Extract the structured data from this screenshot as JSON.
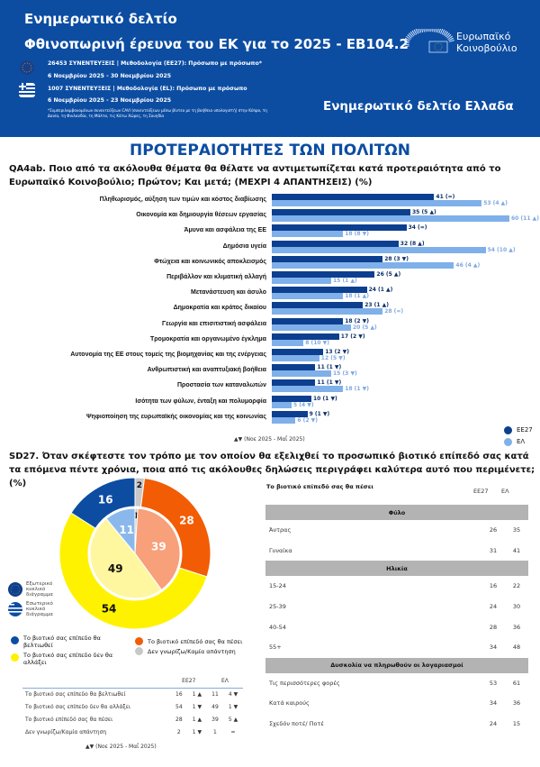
{
  "header": {
    "title1": "Ενημερωτικό δελτίο",
    "title2": "Φθινοπωρινή έρευνα του ΕΚ για το 2025 - ΕΒ104.2",
    "eu_line1": "26453 ΣΥΝΕΝΤΕΥΞΕΙΣ | Μεθοδολογία (ΕΕ27): Πρόσωπο με πρόσωπο*",
    "eu_line2": "6 Νοεμβρίου 2025 - 30 Νοεμβρίου 2025",
    "el_line1": "1007 ΣΥΝΕΝΤΕΥΞΕΙΣ | Μεθοδολογία (EL): Πρόσωπο με πρόσωπο",
    "el_line2": "6 Νοεμβρίου 2025 - 23 Νοεμβρίου 2025",
    "footnote": "*Συμπεριλαμβανομένων συνεντεύξεων CAVI (συνεντεύξεων μέσω βίντεο με τη βοήθεια υπολογιστή) στην Κύπρο, τη Δανία, τη Φινλανδία, τη Μάλτα, τις Κάτω Χώρες, τη Σουηδία",
    "logo_line1": "Ευρωπαϊκό",
    "logo_line2": "Κοινοβούλιο",
    "country_title": "Ενημερωτικό δελτίο Ελλαδα"
  },
  "section_title": "ΠΡΟΤΕΡΑΙΟΤΗΤΕΣ ΤΩΝ ΠΟΛΙΤΩΝ",
  "chart_data": [
    {
      "type": "bar",
      "orientation": "horizontal",
      "title": "QA4ab. Ποιο από τα ακόλουθα θέματα θα θέλατε να αντιμετωπίζεται κατά προτεραιότητα από το Ευρωπαϊκό Κοινοβούλιο; Πρώτον; Και μετά; (ΜΕΧΡΙ 4 ΑΠΑΝΤΗΣΕΙΣ) (%)",
      "categories": [
        "Πληθωρισμός, αύξηση των τιμών και κόστος διαβίωσης",
        "Οικονομία και δημιουργία θέσεων εργασίας",
        "Άμυνα και ασφάλεια της ΕΕ",
        "Δημόσια υγεία",
        "Φτώχεια και κοινωνικός αποκλεισμός",
        "Περιβάλλον και κλιματική αλλαγή",
        "Μετανάστευση και άσυλο",
        "Δημοκρατία και κράτος δικαίου",
        "Γεωργία και επισιτιστική ασφάλεια",
        "Τρομοκρατία και οργανωμένο έγκλημα",
        "Αυτονομία της ΕΕ στους τομείς της βιομηχανίας και της ενέργειας",
        "Ανθρωπιστική και αναπτυξιακή βοήθεια",
        "Προστασία των καταναλωτών",
        "Ισότητα των φύλων, ένταξη και πολυμορφία",
        "Ψηφιοποίηση της ευρωπαϊκής οικονομίας και της κοινωνίας"
      ],
      "series": [
        {
          "name": "ΕΕ27",
          "color": "#0c3f8f",
          "values": [
            41,
            35,
            34,
            32,
            28,
            26,
            24,
            23,
            18,
            17,
            13,
            11,
            11,
            10,
            9
          ],
          "labels": [
            "41 (=)",
            "35 (5 ▲)",
            "34 (=)",
            "32 (8 ▲)",
            "28 (3 ▼)",
            "26 (5 ▲)",
            "24 (1 ▲)",
            "23 (1 ▲)",
            "18 (2 ▼)",
            "17 (2 ▼)",
            "13 (2 ▼)",
            "11 (1 ▼)",
            "11 (1 ▼)",
            "10 (1 ▼)",
            "9 (1 ▼)"
          ]
        },
        {
          "name": "ΕΛ",
          "color": "#7fb0ea",
          "values": [
            53,
            60,
            18,
            54,
            46,
            15,
            18,
            28,
            20,
            8,
            12,
            15,
            18,
            5,
            6
          ],
          "labels": [
            "53 (4 ▲)",
            "60 (11 ▲)",
            "18 (8 ▼)",
            "54 (10 ▲)",
            "46 (4 ▲)",
            "15 (1 ▲)",
            "18 (1 ▲)",
            "28 (=)",
            "20 (5 ▲)",
            "8 (10 ▼)",
            "12 (5 ▼)",
            "15 (3 ▼)",
            "18 (1 ▼)",
            "5 (4 ▼)",
            "6 (2 ▼)"
          ]
        }
      ],
      "xlim": [
        0,
        70
      ],
      "legend": "bottom-right",
      "note": "▲▼ (Νοε 2025 - Μαΐ 2025)"
    },
    {
      "type": "pie",
      "subtype": "nested-donut",
      "title": "SD27. Όταν σκέφτεστε τον τρόπο με τον οποίον θα εξελιχθεί το προσωπικό βιοτικό επίπεδό σας κατά τα επόμενα πέντε χρόνια, ποια από τις ακόλουθες δηλώσεις περιγράφει καλύτερα αυτό που περιμένετε; (%)",
      "categories": [
        "Δεν γνωρίζω/Καμία απάντηση",
        "Το βιοτικό επίπεδό σας θα πέσει",
        "Το βιοτικό σας επίπεδο δεν θα αλλάξει",
        "Το βιοτικό σας επίπεδο θα βελτιωθεί"
      ],
      "outer": {
        "name": "Εξωτερικό κυκλικό διάγραμμα",
        "values": [
          2,
          28,
          54,
          16
        ],
        "colors": [
          "#c8c8c8",
          "#f25c05",
          "#fff200",
          "#0c4da2"
        ]
      },
      "inner": {
        "name": "Εσωτερικό κυκλικό διάγραμμα",
        "values": [
          1,
          39,
          49,
          11
        ],
        "colors": [
          "#c8c8c8",
          "#f7a07a",
          "#fff7a0",
          "#8bb8ec"
        ]
      }
    }
  ],
  "donut_legend": {
    "outer": "Εξωτερικό κυκλικό διάγραμμα",
    "inner": "Εσωτερικό κυκλικό διάγραμμα",
    "items": [
      {
        "label": "Το βιοτικό σας επίπεδο θα βελτιωθεί",
        "color": "#0c4da2"
      },
      {
        "label": "Το βιοτικό σας επίπεδο δεν θα αλλάξει",
        "color": "#fff200"
      },
      {
        "label": "Το βιοτικό επίπεδό σας θα πέσει",
        "color": "#f25c05"
      },
      {
        "label": "Δεν γνωρίζω/Καμία απάντηση",
        "color": "#c8c8c8"
      }
    ]
  },
  "left_table": {
    "headers": [
      "ΕΕ27",
      "ΕΛ"
    ],
    "rows": [
      [
        "Το βιοτικό σας επίπεδο θα βελτιωθεί",
        "16",
        "1 ▲",
        "11",
        "4 ▼"
      ],
      [
        "Το βιοτικό σας επίπεδο δεν θα αλλάξει",
        "54",
        "1 ▼",
        "49",
        "1 ▼"
      ],
      [
        "Το βιοτικό επίπεδό σας θα πέσει",
        "28",
        "1 ▲",
        "39",
        "5 ▲"
      ],
      [
        "Δεν γνωρίζω/Καμία απάντηση",
        "2",
        "1 ▼",
        "1",
        "="
      ]
    ],
    "note": "▲▼ (Νοε 2025 - Μαΐ 2025)"
  },
  "right_table": {
    "title": "Το βιοτικό επίπεδό σας θα πέσει",
    "headers": [
      "ΕΕ27",
      "ΕΛ"
    ],
    "groups": [
      {
        "name": "Φύλο",
        "rows": [
          [
            "Άντρας",
            "26",
            "35"
          ],
          [
            "Γυναίκα",
            "31",
            "41"
          ]
        ]
      },
      {
        "name": "Ηλικία",
        "rows": [
          [
            "15-24",
            "16",
            "22"
          ],
          [
            "25-39",
            "24",
            "30"
          ],
          [
            "40-54",
            "28",
            "36"
          ],
          [
            "55+",
            "34",
            "48"
          ]
        ]
      },
      {
        "name": "Δυσκολία να πληρωθούν οι λογαριασμοί",
        "rows": [
          [
            "Τις περισσότερες φορές",
            "53",
            "61"
          ],
          [
            "Κατά καιρούς",
            "34",
            "36"
          ],
          [
            "Σχεδόν ποτέ/ Ποτέ",
            "24",
            "15"
          ]
        ]
      }
    ]
  }
}
